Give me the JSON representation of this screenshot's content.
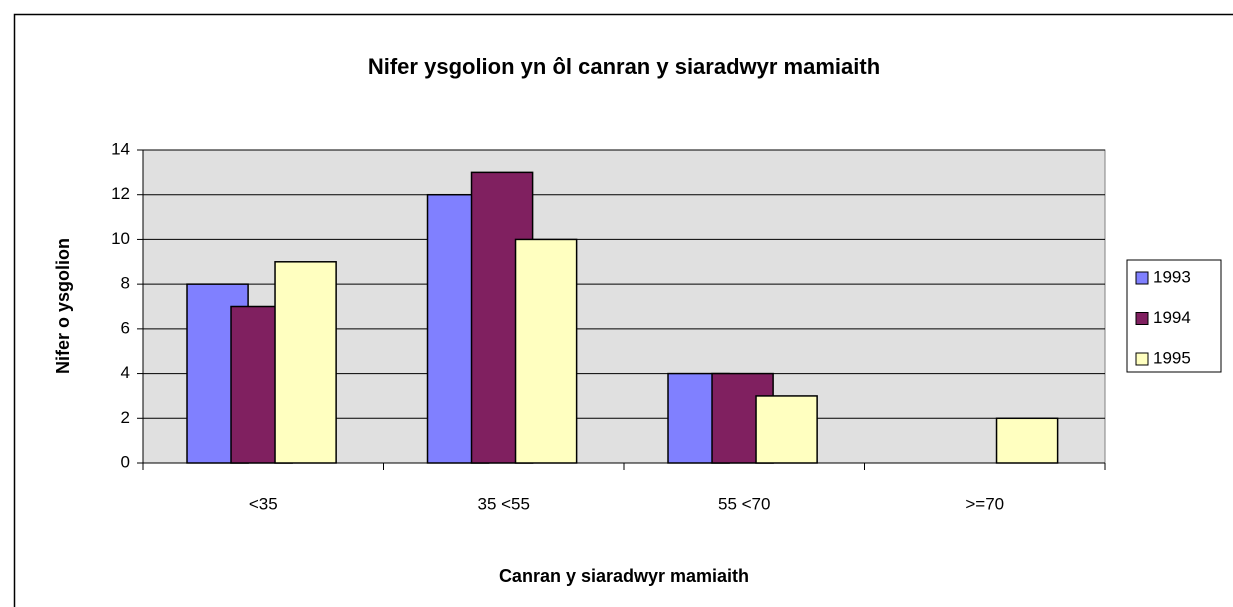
{
  "chart_data": {
    "type": "bar",
    "title": "Nifer ysgolion yn ôl canran y siaradwyr mamiaith",
    "x_label": "Canran y siaradwyr mamiaith",
    "y_label": "Nifer o ysgolion",
    "categories": [
      "<35",
      "35 <55",
      "55 <70",
      ">=70"
    ],
    "series": [
      {
        "name": "1993",
        "color": "#8080ff",
        "values": [
          8,
          12,
          4,
          0
        ]
      },
      {
        "name": "1994",
        "color": "#802060",
        "values": [
          7,
          13,
          4,
          0
        ]
      },
      {
        "name": "1995",
        "color": "#ffffc0",
        "values": [
          9,
          10,
          3,
          2
        ]
      }
    ],
    "ylim": [
      0,
      14
    ],
    "yticks": [
      0,
      2,
      4,
      6,
      8,
      10,
      12,
      14
    ],
    "grid": true,
    "legend": "right"
  }
}
